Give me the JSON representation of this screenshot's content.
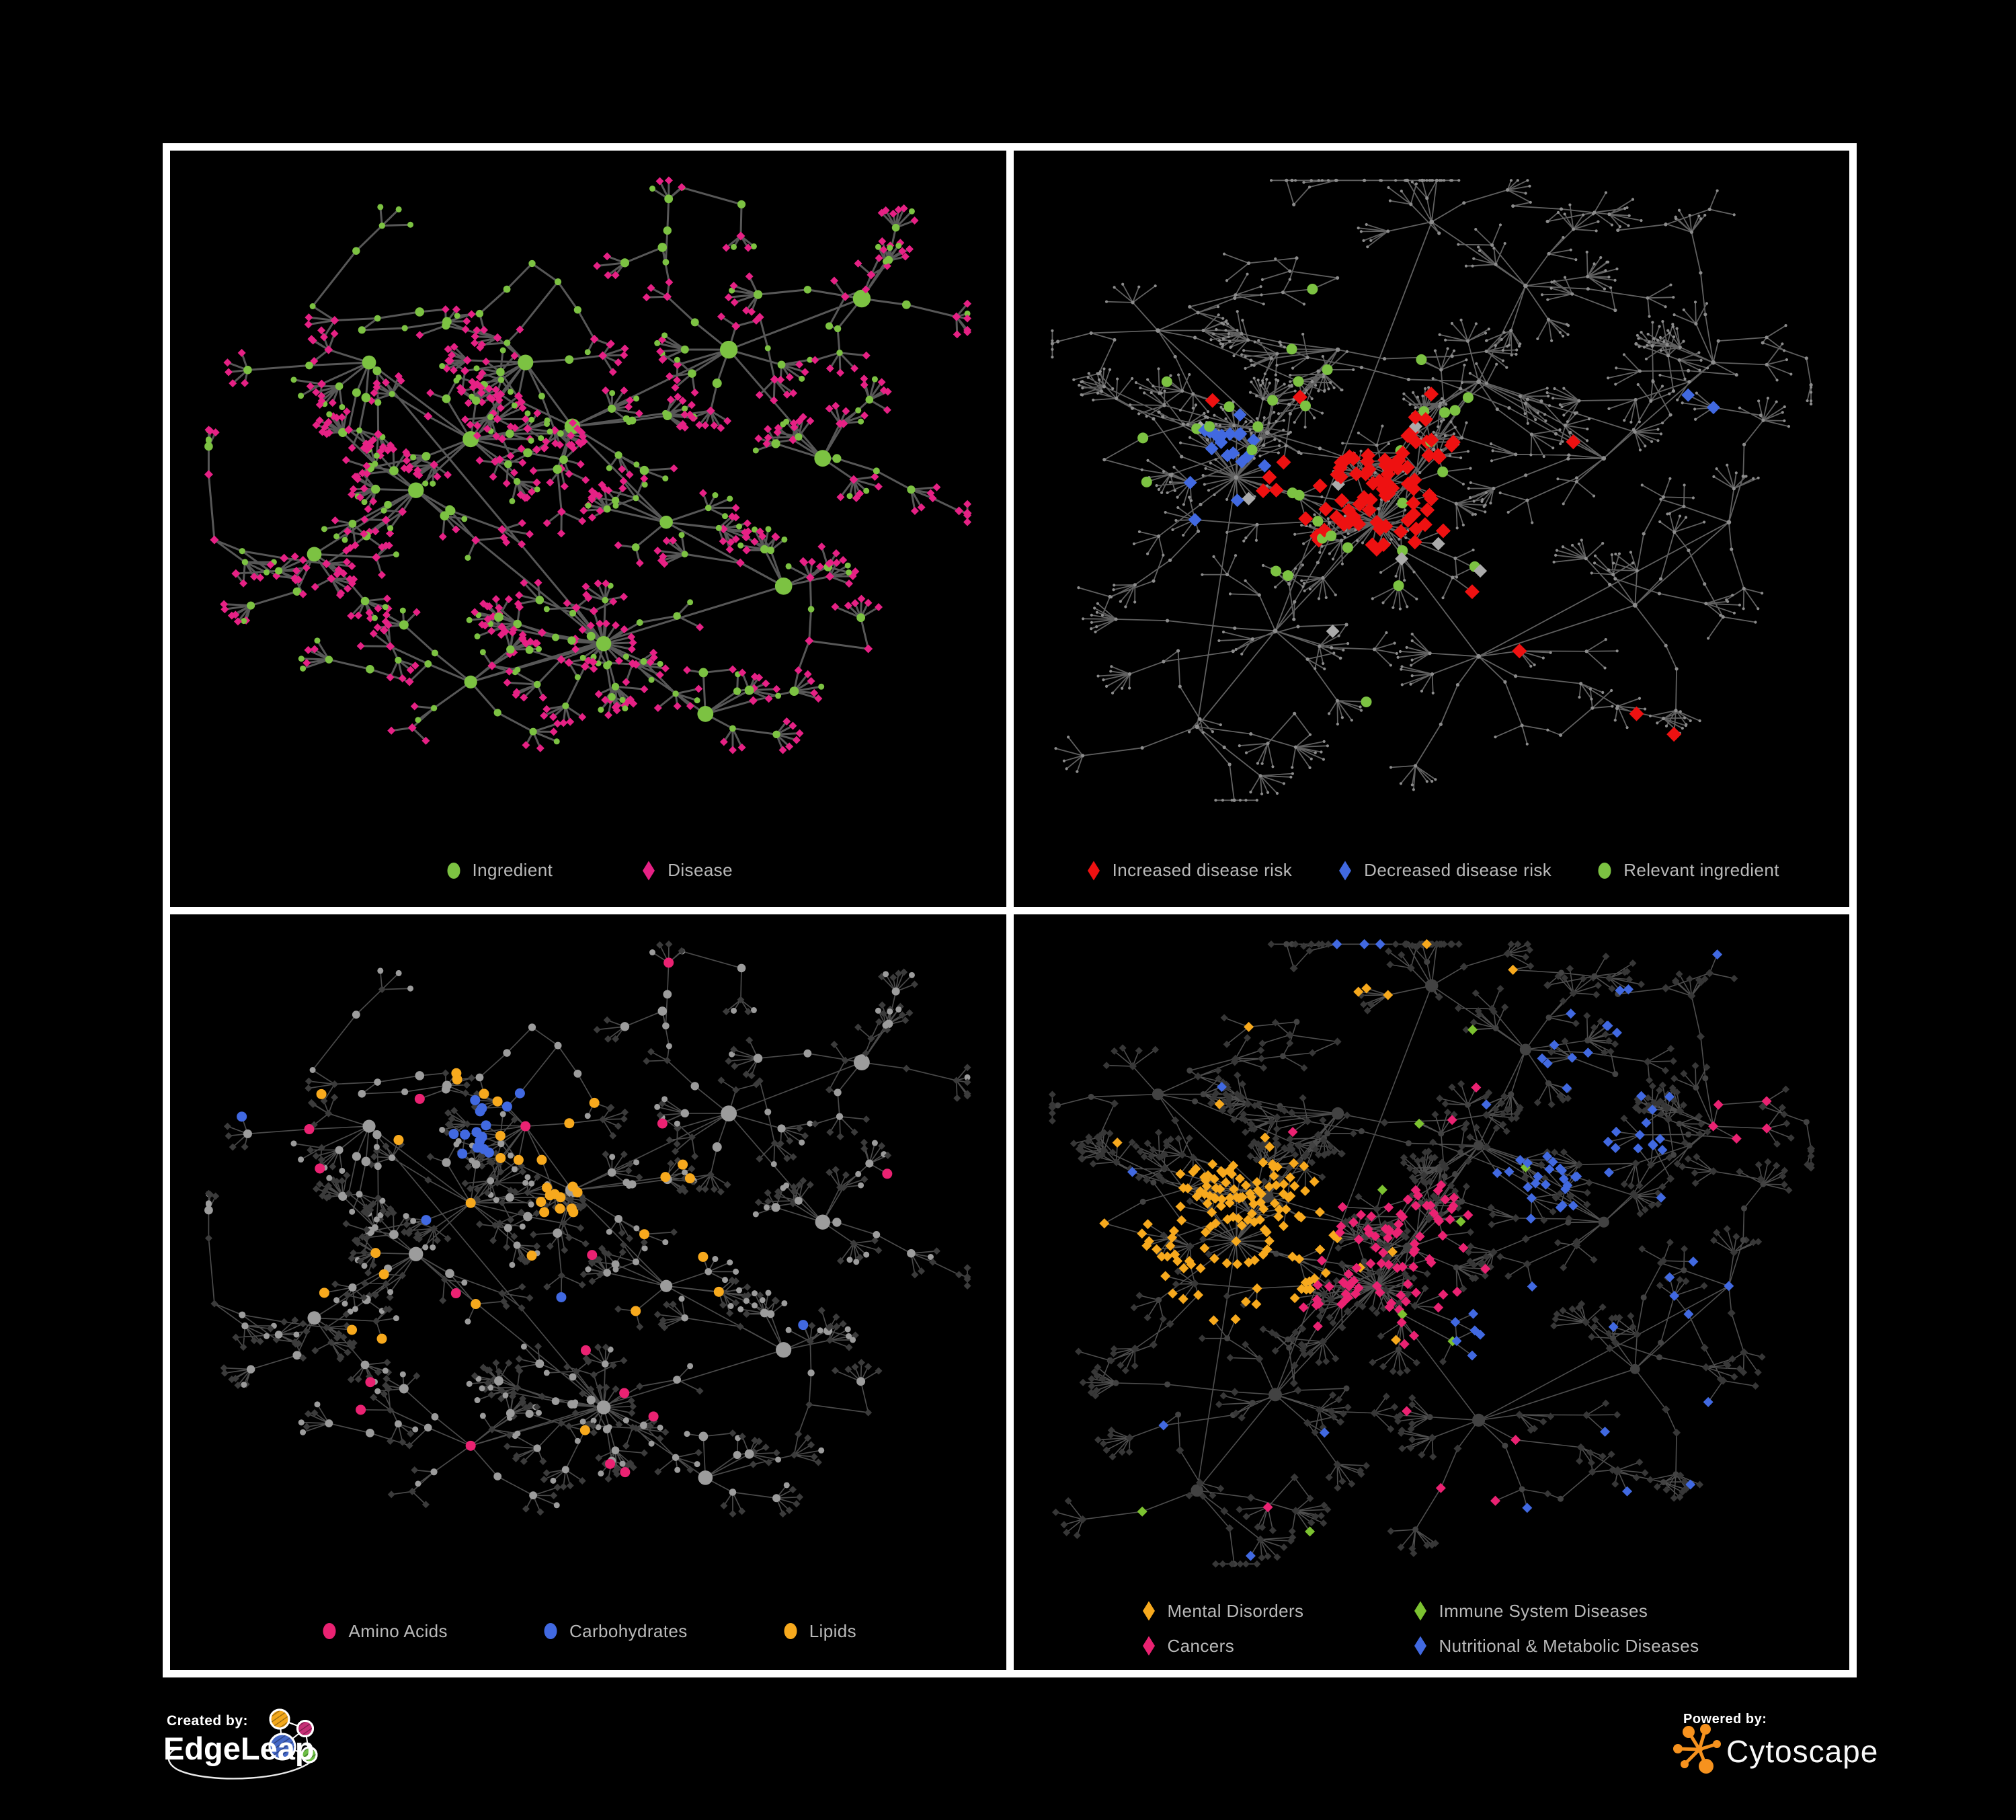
{
  "page": {
    "background": "#000000",
    "panel_background": "#000000",
    "border_color": "#ffffff",
    "legend_text_color": "#B9B9B9"
  },
  "panels": [
    {
      "id": "ingredient-disease",
      "legend": [
        {
          "label": "Ingredient",
          "shape": "circle",
          "color": "#7CC242"
        },
        {
          "label": "Disease",
          "shape": "diamond",
          "color": "#E62185"
        }
      ],
      "palette": {
        "edge": "#616161",
        "ingredient": "#7CC242",
        "disease": "#E62185"
      }
    },
    {
      "id": "disease-risk",
      "legend": [
        {
          "label": "Increased disease risk",
          "shape": "diamond",
          "color": "#EE1111"
        },
        {
          "label": "Decreased disease risk",
          "shape": "diamond",
          "color": "#4169E1"
        },
        {
          "label": "Relevant ingredient",
          "shape": "circle",
          "color": "#7CC242"
        }
      ],
      "palette": {
        "edge": "#6A6A6A",
        "node": "#8C8C8C",
        "increased": "#EE1111",
        "decreased": "#4169E1",
        "unchanged": "#ABABAB",
        "ingredient": "#7CC242"
      }
    },
    {
      "id": "nutrient-classes",
      "legend": [
        {
          "label": "Amino Acids",
          "shape": "circle",
          "color": "#EA2272"
        },
        {
          "label": "Carbohydrates",
          "shape": "circle",
          "color": "#4169E1"
        },
        {
          "label": "Lipids",
          "shape": "circle",
          "color": "#F7A91D"
        }
      ],
      "palette": {
        "edge": "#525252",
        "node": "#9C9C9C",
        "muted": "#3B3B3B",
        "amino": "#EA2272",
        "carbo": "#4169E1",
        "lipid": "#F7A91D"
      }
    },
    {
      "id": "disease-categories",
      "legend": [
        {
          "label": "Mental Disorders",
          "shape": "diamond",
          "color": "#F7A91D"
        },
        {
          "label": "Immune System Diseases",
          "shape": "diamond",
          "color": "#7CC230"
        },
        {
          "label": "Cancers",
          "shape": "diamond",
          "color": "#EA2272"
        },
        {
          "label": "Nutritional & Metabolic Diseases",
          "shape": "diamond",
          "color": "#4169E1"
        }
      ],
      "palette": {
        "edge": "#565656",
        "node": "#424242",
        "muted": "#373737",
        "mental": "#F7A91D",
        "immune": "#7CC230",
        "cancer": "#EA2272",
        "nutri": "#4169E1"
      }
    }
  ],
  "footer": {
    "created_by": {
      "label": "Created by:",
      "brand": "EdgeLeap",
      "logo_colors": {
        "orange": "#F2A71B",
        "magenta": "#C62E76",
        "blue": "#4467C6",
        "green": "#6DBE45"
      }
    },
    "powered_by": {
      "label": "Powered by:",
      "brand": "Cytoscape",
      "accent": "#F6921E"
    }
  }
}
